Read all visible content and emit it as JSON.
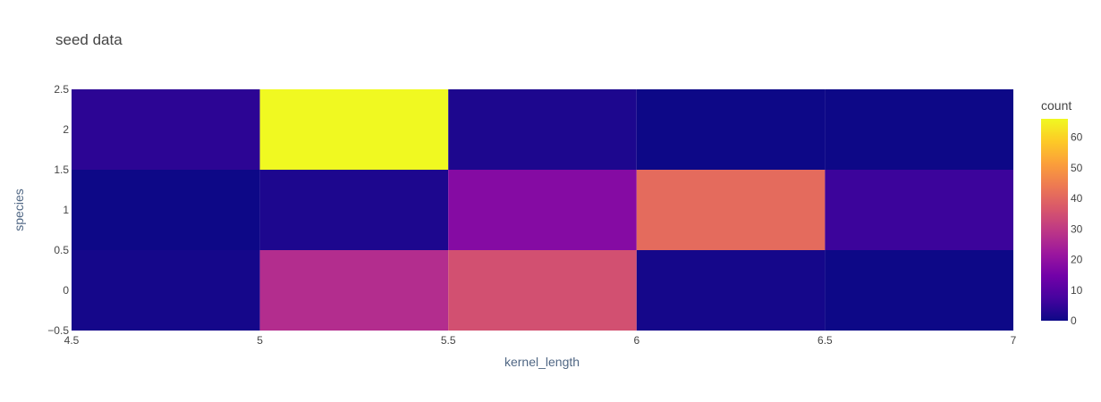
{
  "chart_data": {
    "type": "heatmap",
    "title": "seed data",
    "xlabel": "kernel_length",
    "ylabel": "species",
    "colorbar_title": "count",
    "x_bins": [
      [
        4.5,
        5
      ],
      [
        5,
        5.5
      ],
      [
        5.5,
        6
      ],
      [
        6,
        6.5
      ],
      [
        6.5,
        7
      ]
    ],
    "y_bins": [
      [
        -0.5,
        0.5
      ],
      [
        0.5,
        1.5
      ],
      [
        1.5,
        2.5
      ]
    ],
    "z": [
      [
        1,
        27,
        35,
        1,
        0
      ],
      [
        0,
        2,
        18,
        41,
        6
      ],
      [
        4,
        66,
        2,
        0,
        0
      ]
    ],
    "xlim": [
      4.5,
      7
    ],
    "ylim": [
      -0.5,
      2.5
    ],
    "x_ticks": [
      "4.5",
      "5",
      "5.5",
      "6",
      "6.5",
      "7"
    ],
    "y_ticks": [
      "−0.5",
      "0",
      "0.5",
      "1",
      "1.5",
      "2",
      "2.5"
    ],
    "colorbar": {
      "min": 0,
      "max": 66,
      "ticks": [
        "0",
        "10",
        "20",
        "30",
        "40",
        "50",
        "60"
      ],
      "colorscale": [
        "#0d0887",
        "#46039f",
        "#7201a8",
        "#9c179e",
        "#bd3786",
        "#d8576b",
        "#ed7953",
        "#fb9f3a",
        "#fdca26",
        "#f0f921"
      ]
    },
    "grid": false,
    "legend": "right"
  }
}
